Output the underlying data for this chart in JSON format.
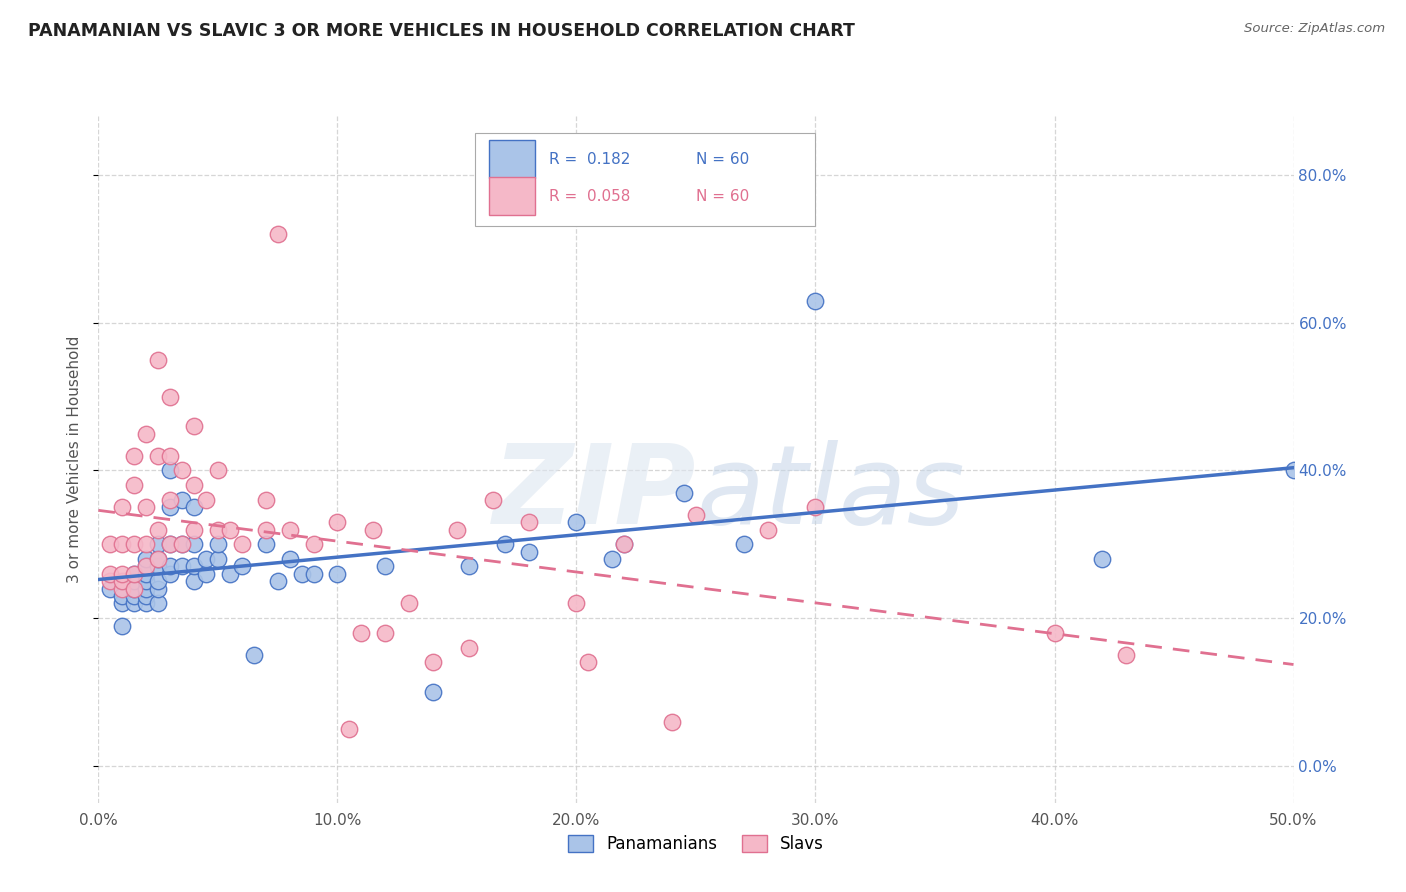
{
  "title": "PANAMANIAN VS SLAVIC 3 OR MORE VEHICLES IN HOUSEHOLD CORRELATION CHART",
  "source": "Source: ZipAtlas.com",
  "ylabel": "3 or more Vehicles in Household",
  "xlim": [
    0.0,
    0.5
  ],
  "ylim": [
    -0.05,
    0.88
  ],
  "yticks": [
    0.0,
    0.2,
    0.4,
    0.6,
    0.8
  ],
  "xticks": [
    0.0,
    0.1,
    0.2,
    0.3,
    0.4,
    0.5
  ],
  "R_blue": 0.182,
  "N_blue": 60,
  "R_pink": 0.058,
  "N_pink": 60,
  "blue_color": "#aac4e8",
  "pink_color": "#f5b8c8",
  "blue_line_color": "#4472c4",
  "pink_line_color": "#e07090",
  "blue_x": [
    0.005,
    0.01,
    0.01,
    0.01,
    0.015,
    0.015,
    0.015,
    0.015,
    0.015,
    0.02,
    0.02,
    0.02,
    0.02,
    0.02,
    0.02,
    0.02,
    0.025,
    0.025,
    0.025,
    0.025,
    0.025,
    0.025,
    0.03,
    0.03,
    0.03,
    0.03,
    0.03,
    0.035,
    0.035,
    0.035,
    0.04,
    0.04,
    0.04,
    0.04,
    0.045,
    0.045,
    0.05,
    0.05,
    0.055,
    0.06,
    0.065,
    0.07,
    0.075,
    0.08,
    0.085,
    0.09,
    0.1,
    0.12,
    0.14,
    0.155,
    0.17,
    0.18,
    0.2,
    0.215,
    0.22,
    0.245,
    0.27,
    0.3,
    0.42,
    0.5
  ],
  "blue_y": [
    0.24,
    0.19,
    0.22,
    0.23,
    0.22,
    0.23,
    0.24,
    0.25,
    0.26,
    0.22,
    0.23,
    0.24,
    0.25,
    0.26,
    0.27,
    0.28,
    0.22,
    0.24,
    0.25,
    0.27,
    0.28,
    0.3,
    0.26,
    0.27,
    0.3,
    0.35,
    0.4,
    0.27,
    0.3,
    0.36,
    0.25,
    0.27,
    0.3,
    0.35,
    0.26,
    0.28,
    0.28,
    0.3,
    0.26,
    0.27,
    0.15,
    0.3,
    0.25,
    0.28,
    0.26,
    0.26,
    0.26,
    0.27,
    0.1,
    0.27,
    0.3,
    0.29,
    0.33,
    0.28,
    0.3,
    0.37,
    0.3,
    0.63,
    0.28,
    0.4
  ],
  "pink_x": [
    0.005,
    0.005,
    0.005,
    0.01,
    0.01,
    0.01,
    0.01,
    0.01,
    0.015,
    0.015,
    0.015,
    0.015,
    0.015,
    0.02,
    0.02,
    0.02,
    0.02,
    0.025,
    0.025,
    0.025,
    0.025,
    0.03,
    0.03,
    0.03,
    0.03,
    0.035,
    0.035,
    0.04,
    0.04,
    0.04,
    0.045,
    0.05,
    0.05,
    0.055,
    0.06,
    0.07,
    0.07,
    0.075,
    0.08,
    0.09,
    0.1,
    0.105,
    0.11,
    0.115,
    0.12,
    0.13,
    0.14,
    0.15,
    0.155,
    0.165,
    0.18,
    0.2,
    0.205,
    0.22,
    0.24,
    0.25,
    0.28,
    0.3,
    0.4,
    0.43
  ],
  "pink_y": [
    0.25,
    0.26,
    0.3,
    0.24,
    0.25,
    0.26,
    0.3,
    0.35,
    0.24,
    0.26,
    0.3,
    0.38,
    0.42,
    0.27,
    0.3,
    0.35,
    0.45,
    0.28,
    0.32,
    0.42,
    0.55,
    0.3,
    0.36,
    0.42,
    0.5,
    0.3,
    0.4,
    0.32,
    0.38,
    0.46,
    0.36,
    0.32,
    0.4,
    0.32,
    0.3,
    0.32,
    0.36,
    0.72,
    0.32,
    0.3,
    0.33,
    0.05,
    0.18,
    0.32,
    0.18,
    0.22,
    0.14,
    0.32,
    0.16,
    0.36,
    0.33,
    0.22,
    0.14,
    0.3,
    0.06,
    0.34,
    0.32,
    0.35,
    0.18,
    0.15
  ]
}
